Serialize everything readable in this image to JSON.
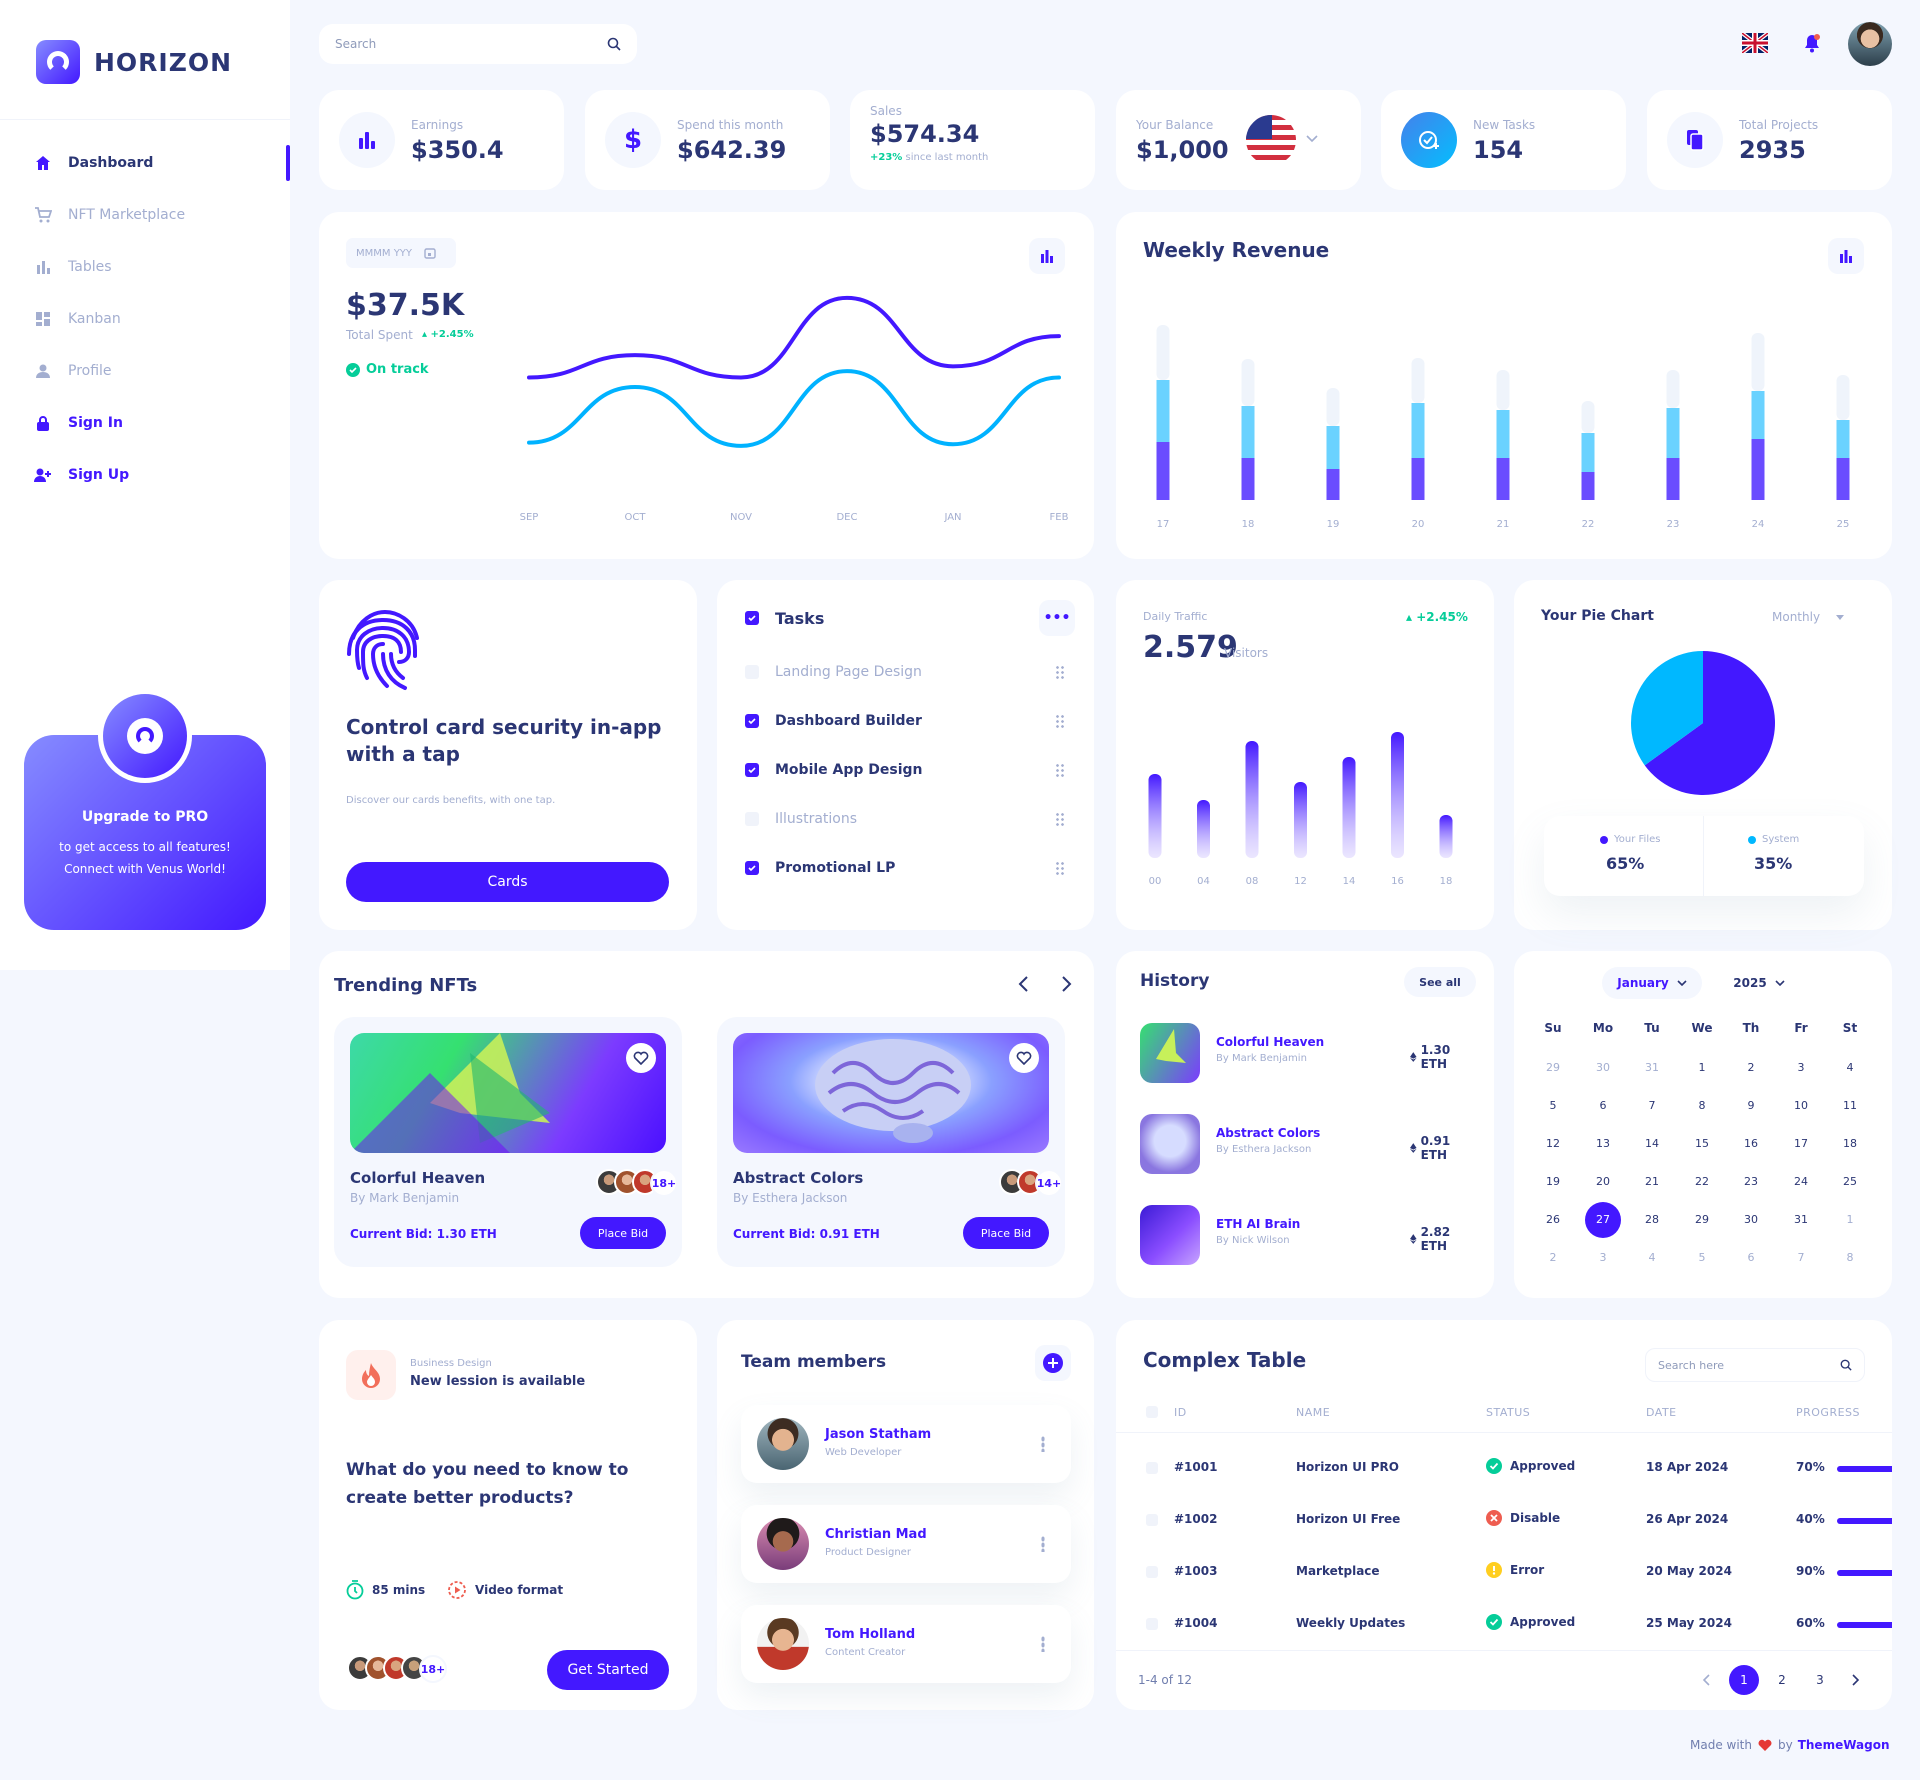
{
  "brand": {
    "name": "HORIZON"
  },
  "sidebar": {
    "items": [
      {
        "label": "Dashboard"
      },
      {
        "label": "NFT Marketplace"
      },
      {
        "label": "Tables"
      },
      {
        "label": "Kanban"
      },
      {
        "label": "Profile"
      },
      {
        "label": "Sign In"
      },
      {
        "label": "Sign Up"
      }
    ],
    "upgrade": {
      "title": "Upgrade to PRO",
      "line1": "to get access to all features!",
      "line2": "Connect with Venus World!"
    }
  },
  "header": {
    "search_placeholder": "Search"
  },
  "stats": {
    "earnings": {
      "label": "Earnings",
      "value": "$350.4"
    },
    "spend": {
      "label": "Spend this month",
      "value": "$642.39"
    },
    "sales": {
      "label": "Sales",
      "value": "$574.34",
      "change": "+23%",
      "change_note": "since last month"
    },
    "balance": {
      "label": "Your Balance",
      "value": "$1,000"
    },
    "tasks": {
      "label": "New Tasks",
      "value": "154"
    },
    "projects": {
      "label": "Total Projects",
      "value": "2935"
    }
  },
  "total_spent": {
    "date_picker": "MMMM YYY",
    "value": "$37.5K",
    "label": "Total Spent",
    "change": "+2.45%",
    "status": "On track"
  },
  "weekly_revenue": {
    "title": "Weekly Revenue"
  },
  "security": {
    "title": "Control card security in-app with a tap",
    "desc": "Discover our cards benefits, with one tap.",
    "button": "Cards"
  },
  "tasks": {
    "title": "Tasks",
    "items": [
      {
        "label": "Landing Page Design",
        "checked": false
      },
      {
        "label": "Dashboard Builder",
        "checked": true
      },
      {
        "label": "Mobile App Design",
        "checked": true
      },
      {
        "label": "Illustrations",
        "checked": false
      },
      {
        "label": "Promotional LP",
        "checked": true
      }
    ]
  },
  "daily_traffic": {
    "label": "Daily Traffic",
    "value": "2.579",
    "unit": "Visitors",
    "change": "+2.45%"
  },
  "pie": {
    "title": "Your Pie Chart",
    "period": "Monthly",
    "files_label": "Your Files",
    "files_value": "65%",
    "system_label": "System",
    "system_value": "35%"
  },
  "trending": {
    "title": "Trending NFTs",
    "items": [
      {
        "name": "Colorful Heaven",
        "author": "By Mark Benjamin",
        "bid": "Current Bid: 1.30 ETH",
        "count": "18+",
        "button": "Place Bid"
      },
      {
        "name": "Abstract Colors",
        "author": "By Esthera Jackson",
        "bid": "Current Bid: 0.91 ETH",
        "count": "14+",
        "button": "Place Bid"
      }
    ]
  },
  "history": {
    "title": "History",
    "see_all": "See all",
    "items": [
      {
        "name": "Colorful Heaven",
        "author": "By Mark Benjamin",
        "price": "1.30 ETH"
      },
      {
        "name": "Abstract Colors",
        "author": "By Esthera Jackson",
        "price": "0.91 ETH"
      },
      {
        "name": "ETH AI Brain",
        "author": "By Nick Wilson",
        "price": "2.82 ETH"
      }
    ]
  },
  "calendar": {
    "month": "January",
    "year": "2025",
    "weekdays": [
      "Su",
      "Mo",
      "Tu",
      "We",
      "Th",
      "Fr",
      "St"
    ],
    "weeks": [
      [
        "29",
        "30",
        "31",
        "1",
        "2",
        "3",
        "4"
      ],
      [
        "5",
        "6",
        "7",
        "8",
        "9",
        "10",
        "11"
      ],
      [
        "12",
        "13",
        "14",
        "15",
        "16",
        "17",
        "18"
      ],
      [
        "19",
        "20",
        "21",
        "22",
        "23",
        "24",
        "25"
      ],
      [
        "26",
        "27",
        "28",
        "29",
        "30",
        "31",
        "1"
      ],
      [
        "2",
        "3",
        "4",
        "5",
        "6",
        "7",
        "8"
      ]
    ],
    "selected": "27"
  },
  "lesson": {
    "category": "Business Design",
    "headline": "New lession is available",
    "question": "What do you need to know to create better products?",
    "duration": "85 mins",
    "format": "Video format",
    "count": "18+",
    "button": "Get Started"
  },
  "team": {
    "title": "Team members",
    "members": [
      {
        "name": "Jason Statham",
        "role": "Web Developer"
      },
      {
        "name": "Christian Mad",
        "role": "Product Designer"
      },
      {
        "name": "Tom Holland",
        "role": "Content Creator"
      }
    ]
  },
  "table": {
    "title": "Complex Table",
    "search_placeholder": "Search here",
    "columns": [
      "ID",
      "NAME",
      "STATUS",
      "DATE",
      "PROGRESS"
    ],
    "rows": [
      {
        "id": "#1001",
        "name": "Horizon UI PRO",
        "status": "Approved",
        "date": "18 Apr 2024",
        "progress": "70%"
      },
      {
        "id": "#1002",
        "name": "Horizon UI Free",
        "status": "Disable",
        "date": "26 Apr 2024",
        "progress": "40%"
      },
      {
        "id": "#1003",
        "name": "Marketplace",
        "status": "Error",
        "date": "20 May 2024",
        "progress": "90%"
      },
      {
        "id": "#1004",
        "name": "Weekly Updates",
        "status": "Approved",
        "date": "25 May 2024",
        "progress": "60%"
      }
    ],
    "range": "1-4 of 12",
    "pages": [
      "1",
      "2",
      "3"
    ]
  },
  "footer": {
    "made_with": "Made with",
    "by": "by",
    "brand": "ThemeWagon"
  },
  "chart_data": [
    {
      "type": "line",
      "categories": [
        "SEP",
        "OCT",
        "NOV",
        "DEC",
        "JAN",
        "FEB"
      ],
      "series": [
        {
          "values": [
            50,
            64,
            50,
            100,
            57,
            76
          ],
          "color": "#4318ff"
        },
        {
          "values": [
            9,
            44,
            7,
            54,
            8,
            50
          ],
          "color": "#00b2ff"
        }
      ],
      "ylim": [
        0,
        110
      ]
    },
    {
      "type": "bar",
      "categories": [
        "17",
        "18",
        "19",
        "20",
        "21",
        "22",
        "23",
        "24",
        "25"
      ],
      "series": [
        {
          "values": [
            58,
            42,
            31,
            42,
            42,
            28,
            42,
            61,
            42
          ],
          "color": "#6a4cff"
        },
        {
          "values": [
            62,
            52,
            43,
            55,
            48,
            39,
            50,
            48,
            38
          ],
          "color": "#6ad2ff"
        },
        {
          "values": [
            55,
            47,
            38,
            45,
            40,
            32,
            38,
            58,
            45
          ],
          "color": "#eff4fb"
        }
      ]
    },
    {
      "type": "bar",
      "categories": [
        "00",
        "04",
        "08",
        "12",
        "14",
        "16",
        "18"
      ],
      "values": [
        84,
        58,
        117,
        76,
        101,
        126,
        43
      ],
      "ylim": [
        0,
        130
      ]
    },
    {
      "type": "pie",
      "categories": [
        "Your Files",
        "System"
      ],
      "values": [
        65,
        35
      ],
      "colors": [
        "#4318ff",
        "#00b8ff"
      ]
    }
  ]
}
